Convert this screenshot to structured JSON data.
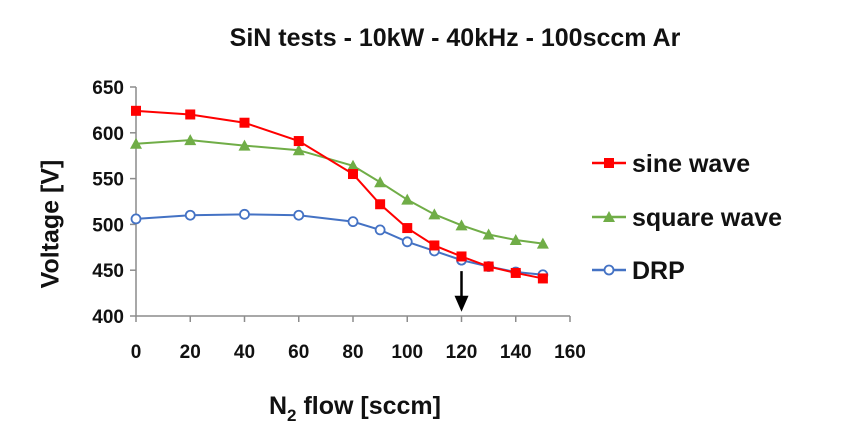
{
  "chart_data": {
    "type": "line",
    "title": "SiN tests - 10kW - 40kHz - 100sccm Ar",
    "xlabel_main": "N",
    "xlabel_sub": "2",
    "xlabel_rest": " flow [sccm]",
    "ylabel": "Voltage [V]",
    "xlim": [
      0,
      160
    ],
    "ylim": [
      400,
      650
    ],
    "xticks": [
      0,
      20,
      40,
      60,
      80,
      100,
      120,
      140,
      160
    ],
    "yticks": [
      400,
      450,
      500,
      550,
      600,
      650
    ],
    "grid": false,
    "legend_position": "right",
    "series": [
      {
        "name": "sine wave",
        "color": "#ff0000",
        "marker": "square",
        "x": [
          0,
          20,
          40,
          60,
          80,
          90,
          100,
          110,
          120,
          130,
          140,
          150
        ],
        "y": [
          624,
          620,
          611,
          591,
          555,
          522,
          496,
          477,
          465,
          454,
          447,
          441
        ]
      },
      {
        "name": "square wave",
        "color": "#70ad47",
        "marker": "triangle",
        "x": [
          0,
          20,
          40,
          60,
          80,
          90,
          100,
          110,
          120,
          130,
          140,
          150
        ],
        "y": [
          588,
          592,
          586,
          581,
          564,
          546,
          527,
          511,
          499,
          489,
          483,
          479
        ]
      },
      {
        "name": "DRP",
        "color": "#4472c4",
        "marker": "circle",
        "x": [
          0,
          20,
          40,
          60,
          80,
          90,
          100,
          110,
          120,
          130,
          140,
          150
        ],
        "y": [
          506,
          510,
          511,
          510,
          503,
          494,
          481,
          471,
          461,
          454,
          448,
          445
        ]
      }
    ],
    "annotations": [
      {
        "type": "arrow-down",
        "x": 120,
        "y_from": 449,
        "y_to": 409
      }
    ]
  }
}
